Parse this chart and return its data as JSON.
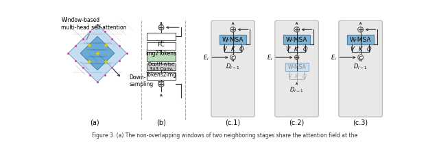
{
  "background": "#ffffff",
  "gray_bg": "#e8e8e8",
  "blue_box": "#7fb3d3",
  "blue_box2": "#a8cce0",
  "green_box": "#b8ddb8",
  "white_box": "#ffffff",
  "light_gray_box": "#cccccc",
  "box_edge": "#555555",
  "blue_edge": "#4a86b8",
  "title_annotation": "Window-based\nmulti-head self-attention",
  "dw_text": "Depth-wise\n3x3 Conv.",
  "fc_text": "FC",
  "img2tokens_text": "Img2Tokens",
  "tokens2img_text": "Tokens2Img",
  "wmsa_text": "W-MSA",
  "down_sampling_text": "Down-\nsampling",
  "caption": "Figure 3. (a) The non-overlapping windows of two neighboring stages share the attention field at the"
}
